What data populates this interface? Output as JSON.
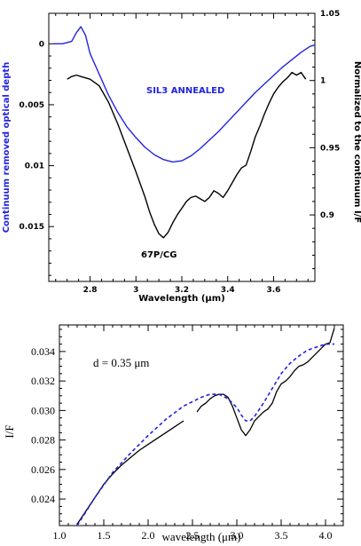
{
  "chart_data": [
    {
      "type": "line",
      "xlabel": "Wavelength (μm)",
      "ylabel_left": "Continuum removed optical depth",
      "ylabel_right": "Normalized to the continuum I/F",
      "xlim": [
        2.62,
        3.78
      ],
      "xticks": [
        "2.8",
        "3",
        "3.2",
        "3.4",
        "3.6"
      ],
      "left_ylim": [
        0.0195,
        -0.0025
      ],
      "left_yticks": [
        "0",
        "0.005",
        "0.01",
        "0.015"
      ],
      "right_ylim": [
        0.8505,
        1.05
      ],
      "right_yticks": [
        "1.05",
        "1",
        "0.95",
        "0.9"
      ],
      "colors": {
        "sil3": "#2323e0",
        "comet": "#000000",
        "left_axis_label": "#2323e0"
      },
      "series": [
        {
          "name": "SIL3 ANNEALED",
          "axis": "left",
          "x": [
            2.64,
            2.68,
            2.72,
            2.74,
            2.76,
            2.78,
            2.8,
            2.84,
            2.88,
            2.92,
            2.96,
            3.0,
            3.04,
            3.08,
            3.12,
            3.16,
            3.2,
            3.24,
            3.28,
            3.32,
            3.36,
            3.4,
            3.44,
            3.48,
            3.52,
            3.56,
            3.6,
            3.64,
            3.68,
            3.72,
            3.76,
            3.78
          ],
          "y": [
            0.0,
            0.0,
            -0.0002,
            -0.0009,
            -0.0014,
            -0.0007,
            0.0008,
            0.0025,
            0.0042,
            0.0056,
            0.0068,
            0.0077,
            0.0085,
            0.0091,
            0.0095,
            0.0097,
            0.0096,
            0.0092,
            0.0086,
            0.0079,
            0.0072,
            0.0064,
            0.0056,
            0.0048,
            0.004,
            0.0033,
            0.0026,
            0.0019,
            0.0013,
            0.0007,
            0.0002,
            0.0001
          ]
        },
        {
          "name": "67P/CG",
          "axis": "right",
          "x": [
            2.7,
            2.72,
            2.74,
            2.76,
            2.8,
            2.84,
            2.88,
            2.92,
            2.96,
            3.0,
            3.04,
            3.06,
            3.08,
            3.1,
            3.12,
            3.14,
            3.16,
            3.18,
            3.2,
            3.22,
            3.24,
            3.26,
            3.28,
            3.3,
            3.32,
            3.34,
            3.36,
            3.38,
            3.4,
            3.42,
            3.44,
            3.46,
            3.48,
            3.5,
            3.52,
            3.54,
            3.56,
            3.58,
            3.6,
            3.62,
            3.64,
            3.66,
            3.68,
            3.7,
            3.72,
            3.74
          ],
          "y": [
            1.001,
            1.003,
            1.004,
            1.003,
            1.001,
            0.996,
            0.984,
            0.968,
            0.95,
            0.932,
            0.913,
            0.902,
            0.893,
            0.886,
            0.883,
            0.887,
            0.894,
            0.9,
            0.905,
            0.91,
            0.913,
            0.914,
            0.912,
            0.91,
            0.913,
            0.918,
            0.916,
            0.913,
            0.918,
            0.924,
            0.93,
            0.935,
            0.937,
            0.947,
            0.958,
            0.966,
            0.975,
            0.983,
            0.99,
            0.995,
            0.999,
            1.002,
            1.006,
            1.004,
            1.006,
            1.001
          ]
        }
      ],
      "annotations": [
        "SIL3 ANNEALED",
        "67P/CG"
      ]
    },
    {
      "type": "line",
      "xlabel": "wavelength (μm)",
      "ylabel": "I/F",
      "xlim": [
        1.0,
        4.2
      ],
      "xticks": [
        "1.0",
        "1.5",
        "2.0",
        "2.5",
        "3.0",
        "3.5",
        "4.0"
      ],
      "ylim": [
        0.0222,
        0.0358
      ],
      "yticks": [
        "0.024",
        "0.026",
        "0.028",
        "0.030",
        "0.032",
        "0.034"
      ],
      "annotation": "d = 0.35 μm",
      "colors": {
        "observed": "#000000",
        "model": "#2323e0"
      },
      "series": [
        {
          "style": "solid",
          "x": [
            1.2,
            1.3,
            1.4,
            1.5,
            1.6,
            1.7,
            1.8,
            1.9,
            2.0,
            2.1,
            2.2,
            2.3,
            2.4
          ],
          "y": [
            0.0223,
            0.0232,
            0.0241,
            0.025,
            0.0257,
            0.0263,
            0.0268,
            0.0273,
            0.0277,
            0.0281,
            0.0285,
            0.0289,
            0.0293
          ]
        },
        {
          "style": "solid",
          "x": [
            2.55,
            2.6,
            2.65,
            2.7,
            2.75,
            2.8,
            2.85,
            2.9,
            2.95,
            3.0,
            3.05,
            3.1,
            3.15,
            3.2,
            3.25,
            3.3,
            3.35,
            3.4,
            3.45,
            3.5,
            3.55,
            3.6,
            3.65,
            3.7,
            3.75,
            3.8,
            3.85,
            3.9,
            3.95,
            4.0,
            4.05,
            4.1
          ],
          "y": [
            0.0299,
            0.0303,
            0.0305,
            0.0308,
            0.031,
            0.0311,
            0.0311,
            0.0309,
            0.0303,
            0.0295,
            0.0287,
            0.0283,
            0.0287,
            0.0293,
            0.0296,
            0.0299,
            0.0301,
            0.0305,
            0.0313,
            0.0318,
            0.032,
            0.0323,
            0.0327,
            0.033,
            0.0331,
            0.0333,
            0.0336,
            0.0339,
            0.0342,
            0.0345,
            0.0346,
            0.0356
          ]
        },
        {
          "style": "dashed",
          "x": [
            1.2,
            1.4,
            1.6,
            1.8,
            2.0,
            2.2,
            2.4,
            2.6,
            2.7,
            2.8,
            2.9,
            3.0,
            3.05,
            3.1,
            3.15,
            3.2,
            3.3,
            3.4,
            3.5,
            3.6,
            3.7,
            3.8,
            3.9,
            4.0,
            4.1
          ],
          "y": [
            0.0222,
            0.0241,
            0.0258,
            0.0271,
            0.0283,
            0.0294,
            0.0303,
            0.0309,
            0.0311,
            0.0311,
            0.0308,
            0.0302,
            0.0297,
            0.0293,
            0.0293,
            0.0296,
            0.0305,
            0.0315,
            0.0325,
            0.0332,
            0.0337,
            0.0341,
            0.0343,
            0.0345,
            0.0345
          ]
        }
      ]
    }
  ]
}
